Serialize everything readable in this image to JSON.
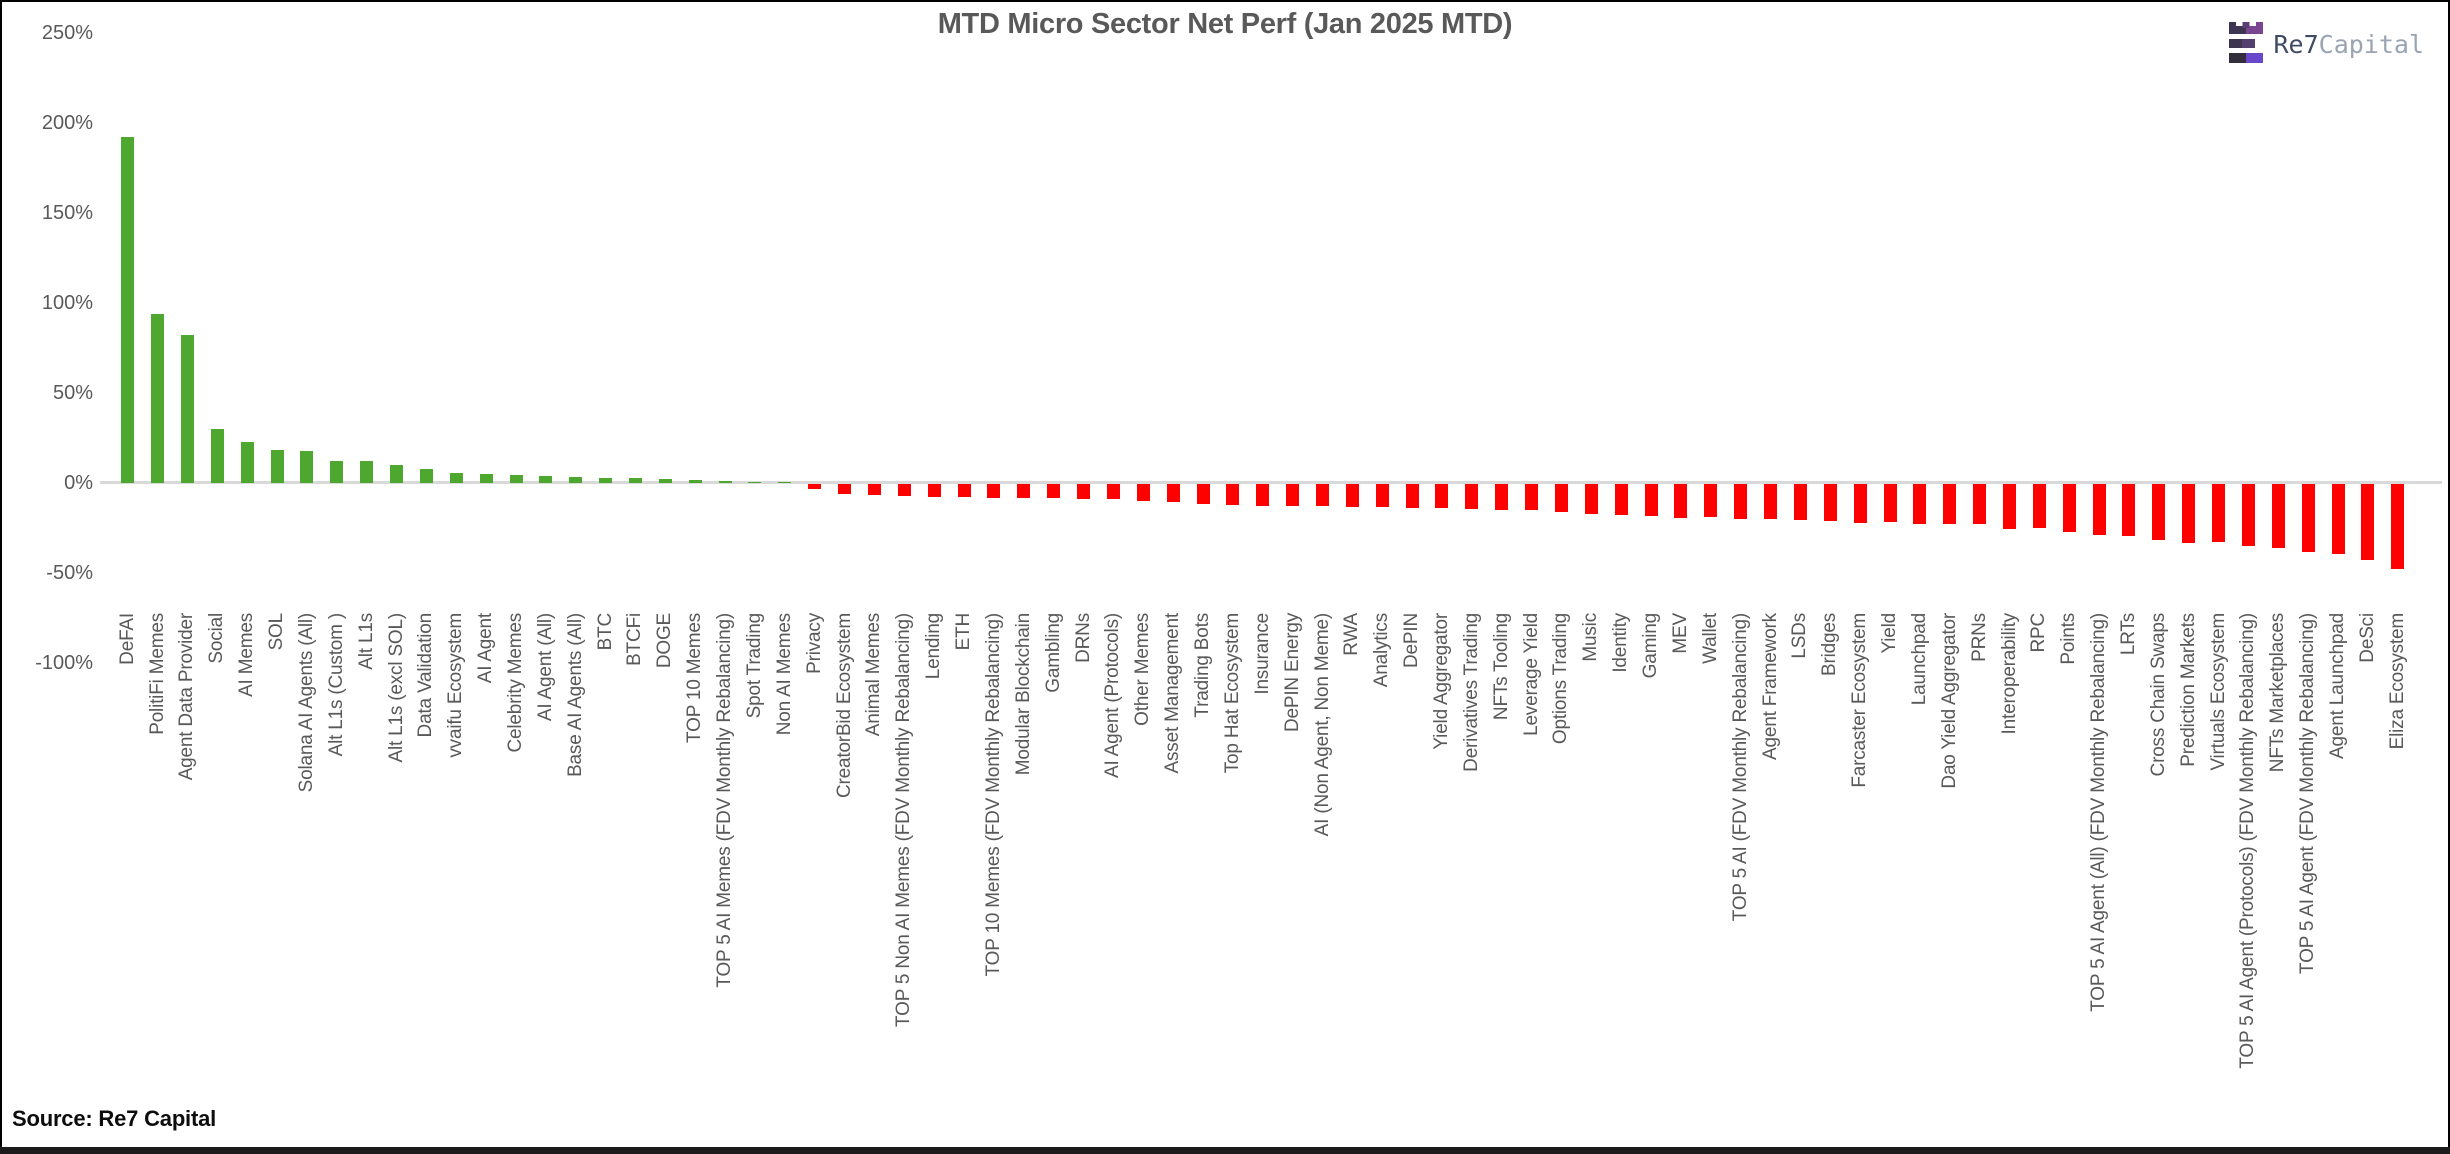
{
  "header": {
    "title": "MTD Micro Sector Net Perf (Jan 2025 MTD)"
  },
  "logo": {
    "name_bold": "Re7",
    "name_light": "Capital",
    "icon": "re7-castle-bars-icon",
    "colors": {
      "dark": "#3e3650",
      "purple": "#7a4692",
      "violet": "#6847cb",
      "text_dark": "#3f4a63",
      "text_light": "#9aa4b2"
    }
  },
  "footer": {
    "source": "Source: Re7 Capital"
  },
  "chart_data": {
    "type": "bar",
    "title": "MTD Micro Sector Net Perf (Jan 2025 MTD)",
    "xlabel": "",
    "ylabel": "",
    "ylim": [
      -100,
      250
    ],
    "yticks": [
      250,
      200,
      150,
      100,
      50,
      0,
      -50,
      -100
    ],
    "ytick_format": "percent",
    "grid": false,
    "legend": "none",
    "positive_color": "#4ea72e",
    "negative_color": "#ff0000",
    "categories": [
      "DeFAI",
      "PolitiFi Memes",
      "Agent Data Provider",
      "Social",
      "AI Memes",
      "SOL",
      "Solana AI Agents (All)",
      "Alt L1s (Custom )",
      "Alt L1s",
      "Alt L1s (excl SOL)",
      "Data Validation",
      "vvaifu Ecosystem",
      "AI Agent",
      "Celebrity Memes",
      "AI Agent (All)",
      "Base AI Agents (All)",
      "BTC",
      "BTCFi",
      "DOGE",
      "TOP 10 Memes",
      "TOP 5 AI Memes (FDV Monthly Rebalancing)",
      "Spot Trading",
      "Non AI Memes",
      "Privacy",
      "CreatorBid Ecosystem",
      "Animal Memes",
      "TOP 5 Non AI Memes (FDV Monthly Rebalancing)",
      "Lending",
      "ETH",
      "TOP 10 Memes (FDV Monthly Rebalancing)",
      "Modular Blockchain",
      "Gambling",
      "DRNs",
      "AI Agent (Protocols)",
      "Other Memes",
      "Asset Management",
      "Trading Bots",
      "Top Hat Ecosystem",
      "Insurance",
      "DePIN Energy",
      "AI (Non Agent, Non Meme)",
      "RWA",
      "Analytics",
      "DePIN",
      "Yield Aggregator",
      "Derivatives Trading",
      "NFTs Tooling",
      "Leverage Yield",
      "Options Trading",
      "Music",
      "Identity",
      "Gaming",
      "MEV",
      "Wallet",
      "TOP 5 AI (FDV Monthly Rebalancing)",
      "Agent Framework",
      "LSDs",
      "Bridges",
      "Farcaster Ecosystem",
      "Yield",
      "Launchpad",
      "Dao Yield Aggregator",
      "PRNs",
      "Interoperability",
      "RPC",
      "Points",
      "TOP 5 AI Agent (All) (FDV Monthly Rebalancing)",
      "LRTs",
      "Cross Chain Swaps",
      "Prediction Markets",
      "Virtuals Ecosystem",
      "TOP 5 AI Agent (Protocols) (FDV Monthly Rebalancing)",
      "NFTs Marketplaces",
      "TOP 5 AI Agent (FDV Monthly Rebalancing)",
      "Agent Launchpad",
      "DeSci",
      "Eliza Ecosystem"
    ],
    "values": [
      192,
      94,
      82,
      30,
      23,
      18.5,
      18,
      12.5,
      12,
      10,
      8,
      5.5,
      5,
      4.5,
      4,
      3.5,
      3,
      3,
      2.5,
      1.5,
      1,
      0.5,
      0.2,
      -2.5,
      -5.5,
      -6,
      -6.5,
      -7,
      -7,
      -7.5,
      -8,
      -8,
      -8.5,
      -8.5,
      -9.5,
      -10,
      -11,
      -11.5,
      -12,
      -12,
      -12,
      -12.5,
      -13,
      -13.5,
      -13.5,
      -14,
      -14.5,
      -14.5,
      -15.5,
      -16.5,
      -17,
      -17.5,
      -19,
      -18.5,
      -19.5,
      -19.5,
      -20,
      -20.5,
      -21.5,
      -21,
      -22,
      -22,
      -22,
      -25,
      -24.5,
      -26.5,
      -28.5,
      -29,
      -31,
      -32.5,
      -32,
      -34.5,
      -35.5,
      -37.5,
      -39,
      -42,
      -47
    ]
  }
}
